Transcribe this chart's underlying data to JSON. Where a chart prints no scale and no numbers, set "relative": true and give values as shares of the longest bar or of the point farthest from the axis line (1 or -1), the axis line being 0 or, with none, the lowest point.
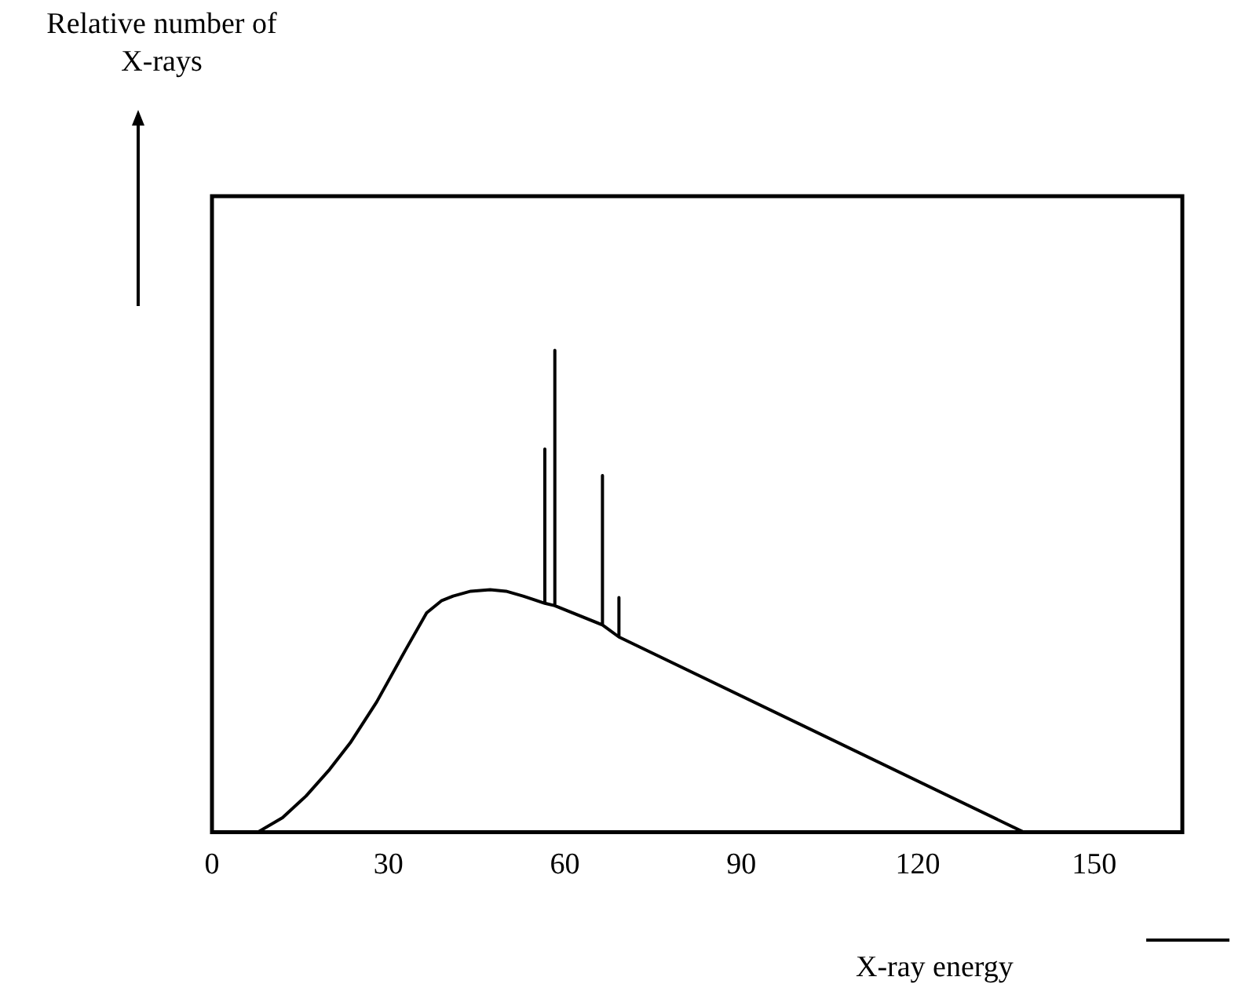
{
  "chart_data": {
    "type": "line",
    "xlabel": "X-ray energy",
    "annotations": [
      "Relative number of X-rays"
    ],
    "relative": true,
    "xlim": [
      0,
      165
    ],
    "xticks": [
      0,
      30,
      60,
      90,
      120,
      150
    ],
    "grid": false,
    "legend": false,
    "marker": "none",
    "line_style": "solid",
    "series": [
      {
        "color": "#000000",
        "x": [
          7.8,
          12,
          16,
          20,
          23.5,
          28,
          33,
          36.5,
          39,
          41,
          44,
          47.3,
          50,
          52.9,
          56.6,
          56.6,
          56.6,
          58.3,
          58.3,
          58.3,
          66.4,
          66.4,
          66.4,
          69.2,
          69.2,
          69.2,
          138
        ],
        "values": [
          0,
          0.03,
          0.075,
          0.13,
          0.185,
          0.27,
          0.38,
          0.455,
          0.48,
          0.49,
          0.5,
          0.503,
          0.5,
          0.49,
          0.475,
          0.795,
          0.475,
          0.47,
          1.0,
          0.47,
          0.43,
          0.74,
          0.43,
          0.405,
          0.487,
          0.405,
          0
        ]
      }
    ]
  }
}
